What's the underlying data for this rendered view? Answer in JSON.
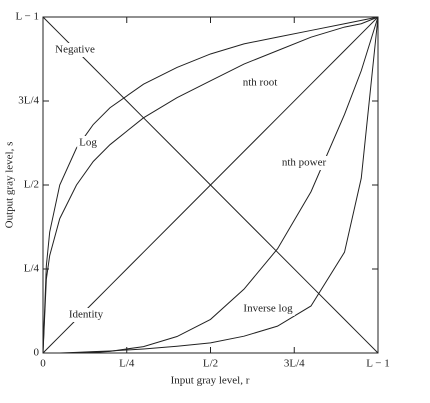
{
  "chart_data": {
    "type": "line",
    "x_label": "Input gray level, r",
    "y_label": "Output gray level, s",
    "x": [
      0,
      0.01,
      0.02,
      0.05,
      0.1,
      0.15,
      0.2,
      0.3,
      0.4,
      0.5,
      0.6,
      0.7,
      0.8,
      0.9,
      0.95,
      1
    ],
    "series": [
      {
        "name": "Negative",
        "color": "#222222",
        "values": [
          1,
          0.99,
          0.98,
          0.95,
          0.9,
          0.85,
          0.8,
          0.7,
          0.6,
          0.5,
          0.4,
          0.3,
          0.2,
          0.1,
          0.05,
          0
        ]
      },
      {
        "name": "nth root",
        "color": "#222222",
        "values": [
          0,
          0.22,
          0.29,
          0.4,
          0.5,
          0.57,
          0.62,
          0.7,
          0.76,
          0.81,
          0.86,
          0.9,
          0.94,
          0.97,
          0.98,
          1
        ]
      },
      {
        "name": "Log",
        "color": "#222222",
        "values": [
          0,
          0.26,
          0.36,
          0.5,
          0.61,
          0.68,
          0.73,
          0.8,
          0.85,
          0.89,
          0.92,
          0.94,
          0.96,
          0.98,
          0.99,
          1
        ]
      },
      {
        "name": "nth power",
        "color": "#222222",
        "values": [
          0,
          0,
          0,
          0,
          0,
          0.002,
          0.005,
          0.019,
          0.049,
          0.1,
          0.19,
          0.31,
          0.48,
          0.71,
          0.84,
          1
        ]
      },
      {
        "name": "Identity",
        "color": "#222222",
        "values": [
          0,
          0.01,
          0.02,
          0.05,
          0.1,
          0.15,
          0.2,
          0.3,
          0.4,
          0.5,
          0.6,
          0.7,
          0.8,
          0.9,
          0.95,
          1
        ]
      },
      {
        "name": "Inverse log",
        "color": "#222222",
        "values": [
          0,
          0,
          0,
          0,
          0.002,
          0.004,
          0.006,
          0.012,
          0.02,
          0.03,
          0.05,
          0.08,
          0.14,
          0.3,
          0.52,
          1
        ]
      }
    ],
    "xlim": [
      0,
      1
    ],
    "ylim": [
      0,
      1
    ],
    "xticks": [
      0,
      {
        "value": 0.25,
        "label": "L/4"
      },
      {
        "value": 0.5,
        "label": "L/2"
      },
      {
        "value": 0.75,
        "label": "3L/4"
      },
      {
        "value": 1,
        "label": "L − 1"
      }
    ],
    "yticks": [
      0,
      {
        "value": 0.25,
        "label": "L/4"
      },
      {
        "value": 0.5,
        "label": "L/2"
      },
      {
        "value": 0.75,
        "label": "3L/4"
      },
      {
        "value": 1,
        "label": "L − 1"
      }
    ]
  }
}
